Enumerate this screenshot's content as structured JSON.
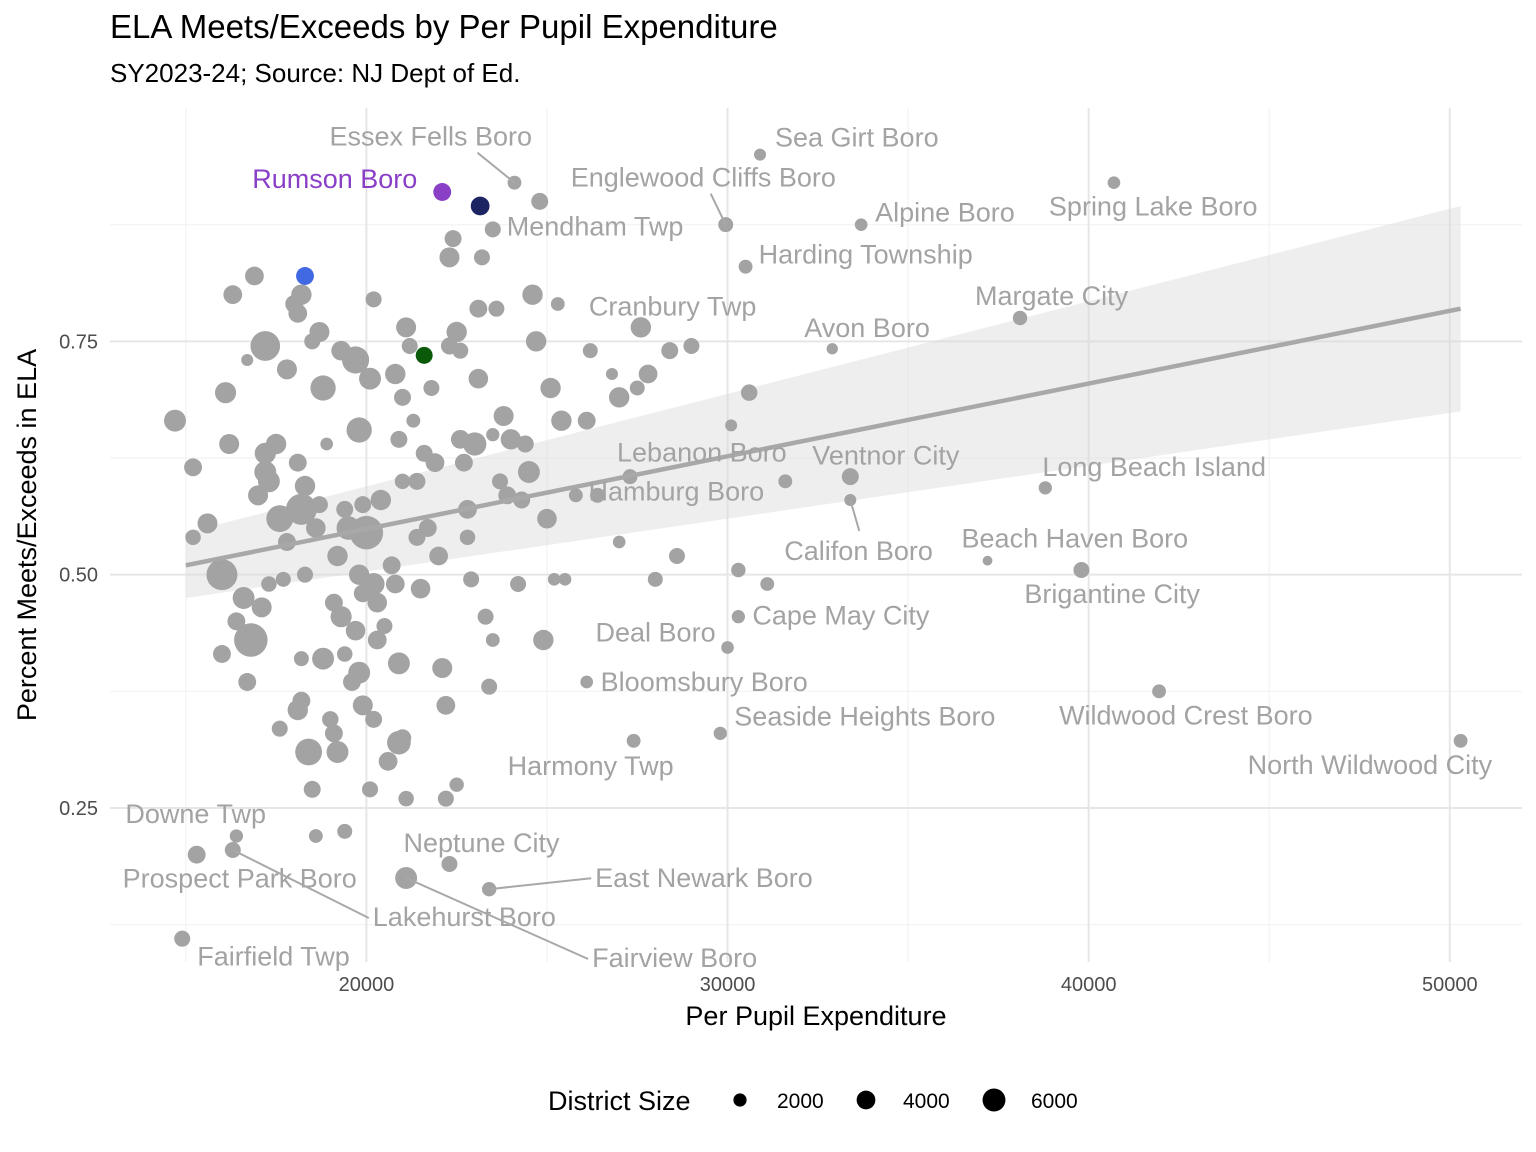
{
  "chart_data": {
    "type": "scatter",
    "title": "ELA Meets/Exceeds by Per Pupil Expenditure",
    "subtitle": "SY2023-24; Source: NJ Dept of Ed.",
    "xlabel": "Per Pupil Expenditure",
    "ylabel": "Percent Meets/Exceeds in ELA",
    "xlim": [
      12900,
      52000
    ],
    "ylim": [
      0.085,
      1.0
    ],
    "x_ticks": [
      20000,
      30000,
      40000,
      50000
    ],
    "x_tick_labels": [
      "20000",
      "30000",
      "40000",
      "50000"
    ],
    "y_ticks": [
      0.25,
      0.5,
      0.75
    ],
    "y_tick_labels": [
      "0.25",
      "0.50",
      "0.75"
    ],
    "grid": true,
    "trend": {
      "x": [
        15000,
        50300
      ],
      "y": [
        0.51,
        0.785
      ],
      "ci_lower": [
        0.475,
        0.675
      ],
      "ci_upper": [
        0.545,
        0.895
      ],
      "color": "#a8a8a8"
    },
    "legend": {
      "title": "District Size",
      "position": "bottom",
      "sizes": [
        2000,
        4000,
        6000
      ],
      "labels": [
        "2000",
        "4000",
        "6000"
      ]
    },
    "default_color": "#a3a3a3",
    "highlight_points": [
      {
        "x": 22100,
        "y": 0.91,
        "size": 2000,
        "color": "#8a3fc7",
        "label": "Rumson Boro"
      },
      {
        "x": 23150,
        "y": 0.895,
        "size": 2200,
        "color": "#1c2461"
      },
      {
        "x": 18300,
        "y": 0.82,
        "size": 2000,
        "color": "#4169e1"
      },
      {
        "x": 21600,
        "y": 0.735,
        "size": 1800,
        "color": "#0a5a0a"
      }
    ],
    "labeled_points": [
      {
        "x": 24100,
        "y": 0.92,
        "size": 1200,
        "label": "Essex Fells Boro"
      },
      {
        "x": 30900,
        "y": 0.95,
        "size": 900,
        "label": "Sea Girt Boro"
      },
      {
        "x": 29950,
        "y": 0.875,
        "size": 1400,
        "label": "Englewood Cliffs Boro"
      },
      {
        "x": 23500,
        "y": 0.87,
        "size": 1600,
        "label": "Mendham Twp"
      },
      {
        "x": 33700,
        "y": 0.875,
        "size": 1000,
        "label": "Alpine Boro"
      },
      {
        "x": 40700,
        "y": 0.92,
        "size": 1000,
        "label": "Spring Lake Boro"
      },
      {
        "x": 30500,
        "y": 0.83,
        "size": 1200,
        "label": "Harding Township"
      },
      {
        "x": 38100,
        "y": 0.775,
        "size": 1300,
        "label": "Margate City"
      },
      {
        "x": 27600,
        "y": 0.765,
        "size": 2600,
        "label": "Cranbury Twp"
      },
      {
        "x": 32900,
        "y": 0.742,
        "size": 800,
        "label": "Avon Boro"
      },
      {
        "x": 27300,
        "y": 0.605,
        "size": 1400,
        "label": "Lebanon Boro"
      },
      {
        "x": 33400,
        "y": 0.605,
        "size": 1800,
        "label": "Ventnor City"
      },
      {
        "x": 38800,
        "y": 0.593,
        "size": 1100,
        "label": "Long Beach Island"
      },
      {
        "x": 26400,
        "y": 0.585,
        "size": 1400,
        "label": "Hamburg Boro"
      },
      {
        "x": 33400,
        "y": 0.58,
        "size": 900,
        "label": "Califon Boro"
      },
      {
        "x": 37200,
        "y": 0.515,
        "size": 600,
        "label": "Beach Haven Boro"
      },
      {
        "x": 39800,
        "y": 0.505,
        "size": 1600,
        "label": "Brigantine City"
      },
      {
        "x": 30300,
        "y": 0.455,
        "size": 1100,
        "label": "Cape May City"
      },
      {
        "x": 30000,
        "y": 0.422,
        "size": 1000,
        "label": "Deal Boro"
      },
      {
        "x": 26100,
        "y": 0.385,
        "size": 1000,
        "label": "Bloomsbury Boro"
      },
      {
        "x": 41950,
        "y": 0.375,
        "size": 1200,
        "label": "Wildwood Crest Boro"
      },
      {
        "x": 29800,
        "y": 0.33,
        "size": 1100,
        "label": "Seaside Heights Boro"
      },
      {
        "x": 27400,
        "y": 0.322,
        "size": 1200,
        "label": "Harmony Twp"
      },
      {
        "x": 50300,
        "y": 0.322,
        "size": 1200,
        "label": "North Wildwood City"
      },
      {
        "x": 16400,
        "y": 0.22,
        "size": 1100,
        "label": "Downe Twp"
      },
      {
        "x": 22300,
        "y": 0.19,
        "size": 1600,
        "label": "Neptune City"
      },
      {
        "x": 15300,
        "y": 0.2,
        "size": 2000,
        "label": "Prospect Park Boro"
      },
      {
        "x": 23400,
        "y": 0.163,
        "size": 1300,
        "label": "East Newark Boro"
      },
      {
        "x": 16300,
        "y": 0.205,
        "size": 1600,
        "label": "Lakehurst Boro"
      },
      {
        "x": 21100,
        "y": 0.175,
        "size": 3000,
        "label": "Fairview Boro"
      },
      {
        "x": 14900,
        "y": 0.11,
        "size": 1600,
        "label": "Fairfield Twp"
      }
    ],
    "points": [
      {
        "x": 14700,
        "y": 0.665,
        "size": 3000
      },
      {
        "x": 15200,
        "y": 0.54,
        "size": 1500
      },
      {
        "x": 15600,
        "y": 0.555,
        "size": 2500
      },
      {
        "x": 15200,
        "y": 0.615,
        "size": 2000
      },
      {
        "x": 16000,
        "y": 0.5,
        "size": 6000
      },
      {
        "x": 16100,
        "y": 0.695,
        "size": 2800
      },
      {
        "x": 16300,
        "y": 0.8,
        "size": 2200
      },
      {
        "x": 16700,
        "y": 0.73,
        "size": 900
      },
      {
        "x": 16200,
        "y": 0.64,
        "size": 2500
      },
      {
        "x": 16600,
        "y": 0.475,
        "size": 3000
      },
      {
        "x": 16400,
        "y": 0.45,
        "size": 2000
      },
      {
        "x": 16000,
        "y": 0.415,
        "size": 2000
      },
      {
        "x": 16700,
        "y": 0.385,
        "size": 2000
      },
      {
        "x": 16900,
        "y": 0.82,
        "size": 2200
      },
      {
        "x": 17200,
        "y": 0.745,
        "size": 5500
      },
      {
        "x": 17000,
        "y": 0.585,
        "size": 2500
      },
      {
        "x": 17300,
        "y": 0.6,
        "size": 3000
      },
      {
        "x": 17600,
        "y": 0.56,
        "size": 4500
      },
      {
        "x": 17200,
        "y": 0.61,
        "size": 3000
      },
      {
        "x": 17200,
        "y": 0.63,
        "size": 2800
      },
      {
        "x": 17500,
        "y": 0.64,
        "size": 2600
      },
      {
        "x": 17800,
        "y": 0.535,
        "size": 2000
      },
      {
        "x": 17100,
        "y": 0.465,
        "size": 2500
      },
      {
        "x": 16800,
        "y": 0.43,
        "size": 7000
      },
      {
        "x": 17300,
        "y": 0.49,
        "size": 1500
      },
      {
        "x": 17600,
        "y": 0.335,
        "size": 1600
      },
      {
        "x": 17700,
        "y": 0.495,
        "size": 1400
      },
      {
        "x": 17800,
        "y": 0.72,
        "size": 2500
      },
      {
        "x": 18000,
        "y": 0.79,
        "size": 2000
      },
      {
        "x": 18100,
        "y": 0.78,
        "size": 2200
      },
      {
        "x": 18200,
        "y": 0.8,
        "size": 2600
      },
      {
        "x": 18300,
        "y": 0.595,
        "size": 2600
      },
      {
        "x": 18200,
        "y": 0.57,
        "size": 6000
      },
      {
        "x": 18100,
        "y": 0.62,
        "size": 2000
      },
      {
        "x": 18300,
        "y": 0.5,
        "size": 1600
      },
      {
        "x": 18200,
        "y": 0.41,
        "size": 1400
      },
      {
        "x": 18100,
        "y": 0.355,
        "size": 2600
      },
      {
        "x": 18200,
        "y": 0.365,
        "size": 2000
      },
      {
        "x": 18400,
        "y": 0.31,
        "size": 4500
      },
      {
        "x": 18500,
        "y": 0.27,
        "size": 1800
      },
      {
        "x": 18600,
        "y": 0.55,
        "size": 2400
      },
      {
        "x": 18700,
        "y": 0.575,
        "size": 1800
      },
      {
        "x": 18800,
        "y": 0.7,
        "size": 4000
      },
      {
        "x": 18900,
        "y": 0.64,
        "size": 1000
      },
      {
        "x": 18500,
        "y": 0.75,
        "size": 1600
      },
      {
        "x": 18700,
        "y": 0.76,
        "size": 2500
      },
      {
        "x": 18800,
        "y": 0.41,
        "size": 3000
      },
      {
        "x": 19000,
        "y": 0.345,
        "size": 1700
      },
      {
        "x": 19100,
        "y": 0.33,
        "size": 2000
      },
      {
        "x": 19200,
        "y": 0.31,
        "size": 3000
      },
      {
        "x": 19100,
        "y": 0.47,
        "size": 2000
      },
      {
        "x": 19300,
        "y": 0.455,
        "size": 2800
      },
      {
        "x": 19200,
        "y": 0.52,
        "size": 2600
      },
      {
        "x": 19500,
        "y": 0.55,
        "size": 3500
      },
      {
        "x": 19400,
        "y": 0.57,
        "size": 1800
      },
      {
        "x": 19300,
        "y": 0.74,
        "size": 2400
      },
      {
        "x": 19700,
        "y": 0.73,
        "size": 4600
      },
      {
        "x": 19800,
        "y": 0.655,
        "size": 4000
      },
      {
        "x": 19900,
        "y": 0.575,
        "size": 1800
      },
      {
        "x": 19800,
        "y": 0.5,
        "size": 2600
      },
      {
        "x": 19900,
        "y": 0.48,
        "size": 2000
      },
      {
        "x": 19700,
        "y": 0.44,
        "size": 2400
      },
      {
        "x": 19800,
        "y": 0.395,
        "size": 3000
      },
      {
        "x": 19900,
        "y": 0.36,
        "size": 2500
      },
      {
        "x": 19600,
        "y": 0.385,
        "size": 2000
      },
      {
        "x": 19400,
        "y": 0.415,
        "size": 1500
      },
      {
        "x": 20000,
        "y": 0.545,
        "size": 7000
      },
      {
        "x": 20100,
        "y": 0.71,
        "size": 3000
      },
      {
        "x": 20200,
        "y": 0.49,
        "size": 3000
      },
      {
        "x": 20300,
        "y": 0.47,
        "size": 2400
      },
      {
        "x": 20300,
        "y": 0.43,
        "size": 2200
      },
      {
        "x": 20200,
        "y": 0.345,
        "size": 1800
      },
      {
        "x": 20100,
        "y": 0.27,
        "size": 1600
      },
      {
        "x": 20200,
        "y": 0.795,
        "size": 1600
      },
      {
        "x": 20400,
        "y": 0.58,
        "size": 2600
      },
      {
        "x": 20500,
        "y": 0.445,
        "size": 1600
      },
      {
        "x": 20600,
        "y": 0.3,
        "size": 2200
      },
      {
        "x": 20700,
        "y": 0.51,
        "size": 2000
      },
      {
        "x": 20800,
        "y": 0.49,
        "size": 2200
      },
      {
        "x": 20800,
        "y": 0.715,
        "size": 2600
      },
      {
        "x": 20900,
        "y": 0.645,
        "size": 1800
      },
      {
        "x": 21000,
        "y": 0.325,
        "size": 1900
      },
      {
        "x": 21000,
        "y": 0.6,
        "size": 1500
      },
      {
        "x": 20900,
        "y": 0.32,
        "size": 3500
      },
      {
        "x": 21000,
        "y": 0.69,
        "size": 1800
      },
      {
        "x": 21100,
        "y": 0.765,
        "size": 2500
      },
      {
        "x": 21200,
        "y": 0.745,
        "size": 1600
      },
      {
        "x": 21300,
        "y": 0.665,
        "size": 1200
      },
      {
        "x": 21400,
        "y": 0.6,
        "size": 1800
      },
      {
        "x": 21400,
        "y": 0.54,
        "size": 1800
      },
      {
        "x": 21500,
        "y": 0.485,
        "size": 2400
      },
      {
        "x": 21600,
        "y": 0.63,
        "size": 1800
      },
      {
        "x": 21700,
        "y": 0.55,
        "size": 2000
      },
      {
        "x": 21800,
        "y": 0.7,
        "size": 1600
      },
      {
        "x": 21900,
        "y": 0.62,
        "size": 2200
      },
      {
        "x": 22000,
        "y": 0.52,
        "size": 2200
      },
      {
        "x": 22100,
        "y": 0.4,
        "size": 2500
      },
      {
        "x": 22200,
        "y": 0.36,
        "size": 2200
      },
      {
        "x": 22300,
        "y": 0.84,
        "size": 2500
      },
      {
        "x": 22400,
        "y": 0.86,
        "size": 1800
      },
      {
        "x": 22500,
        "y": 0.76,
        "size": 2600
      },
      {
        "x": 22600,
        "y": 0.74,
        "size": 1600
      },
      {
        "x": 22600,
        "y": 0.645,
        "size": 2200
      },
      {
        "x": 22700,
        "y": 0.62,
        "size": 2000
      },
      {
        "x": 22800,
        "y": 0.57,
        "size": 2200
      },
      {
        "x": 22800,
        "y": 0.54,
        "size": 1500
      },
      {
        "x": 22900,
        "y": 0.495,
        "size": 1600
      },
      {
        "x": 23000,
        "y": 0.64,
        "size": 3400
      },
      {
        "x": 23100,
        "y": 0.71,
        "size": 2400
      },
      {
        "x": 23100,
        "y": 0.785,
        "size": 2000
      },
      {
        "x": 23200,
        "y": 0.84,
        "size": 1600
      },
      {
        "x": 23300,
        "y": 0.455,
        "size": 1600
      },
      {
        "x": 23400,
        "y": 0.38,
        "size": 1600
      },
      {
        "x": 23500,
        "y": 0.43,
        "size": 1200
      },
      {
        "x": 23600,
        "y": 0.785,
        "size": 1600
      },
      {
        "x": 23700,
        "y": 0.6,
        "size": 1600
      },
      {
        "x": 23800,
        "y": 0.67,
        "size": 2500
      },
      {
        "x": 23900,
        "y": 0.585,
        "size": 2000
      },
      {
        "x": 24000,
        "y": 0.645,
        "size": 2600
      },
      {
        "x": 24200,
        "y": 0.49,
        "size": 1600
      },
      {
        "x": 24300,
        "y": 0.58,
        "size": 1800
      },
      {
        "x": 24400,
        "y": 0.64,
        "size": 1800
      },
      {
        "x": 24500,
        "y": 0.61,
        "size": 3000
      },
      {
        "x": 24600,
        "y": 0.8,
        "size": 2600
      },
      {
        "x": 24700,
        "y": 0.75,
        "size": 2600
      },
      {
        "x": 24800,
        "y": 0.9,
        "size": 1800
      },
      {
        "x": 24900,
        "y": 0.43,
        "size": 2600
      },
      {
        "x": 25000,
        "y": 0.56,
        "size": 2400
      },
      {
        "x": 25100,
        "y": 0.7,
        "size": 2600
      },
      {
        "x": 25200,
        "y": 0.495,
        "size": 1000
      },
      {
        "x": 25300,
        "y": 0.79,
        "size": 1200
      },
      {
        "x": 25400,
        "y": 0.665,
        "size": 2600
      },
      {
        "x": 25500,
        "y": 0.495,
        "size": 1000
      },
      {
        "x": 25800,
        "y": 0.585,
        "size": 1200
      },
      {
        "x": 26100,
        "y": 0.665,
        "size": 2000
      },
      {
        "x": 26200,
        "y": 0.74,
        "size": 1400
      },
      {
        "x": 26800,
        "y": 0.715,
        "size": 900
      },
      {
        "x": 27000,
        "y": 0.535,
        "size": 1000
      },
      {
        "x": 27000,
        "y": 0.69,
        "size": 2600
      },
      {
        "x": 27500,
        "y": 0.7,
        "size": 1400
      },
      {
        "x": 27800,
        "y": 0.715,
        "size": 2200
      },
      {
        "x": 28000,
        "y": 0.495,
        "size": 1400
      },
      {
        "x": 28400,
        "y": 0.74,
        "size": 1800
      },
      {
        "x": 28600,
        "y": 0.52,
        "size": 1600
      },
      {
        "x": 29000,
        "y": 0.745,
        "size": 1600
      },
      {
        "x": 30100,
        "y": 0.66,
        "size": 900
      },
      {
        "x": 30300,
        "y": 0.505,
        "size": 1300
      },
      {
        "x": 30600,
        "y": 0.695,
        "size": 1700
      },
      {
        "x": 31100,
        "y": 0.49,
        "size": 1200
      },
      {
        "x": 31600,
        "y": 0.6,
        "size": 1200
      },
      {
        "x": 22200,
        "y": 0.26,
        "size": 1600
      },
      {
        "x": 22500,
        "y": 0.275,
        "size": 1300
      },
      {
        "x": 21100,
        "y": 0.26,
        "size": 1500
      },
      {
        "x": 18600,
        "y": 0.22,
        "size": 1200
      },
      {
        "x": 19400,
        "y": 0.225,
        "size": 1400
      },
      {
        "x": 23500,
        "y": 0.65,
        "size": 1100
      },
      {
        "x": 22300,
        "y": 0.745,
        "size": 1800
      },
      {
        "x": 20900,
        "y": 0.405,
        "size": 3000
      }
    ]
  }
}
